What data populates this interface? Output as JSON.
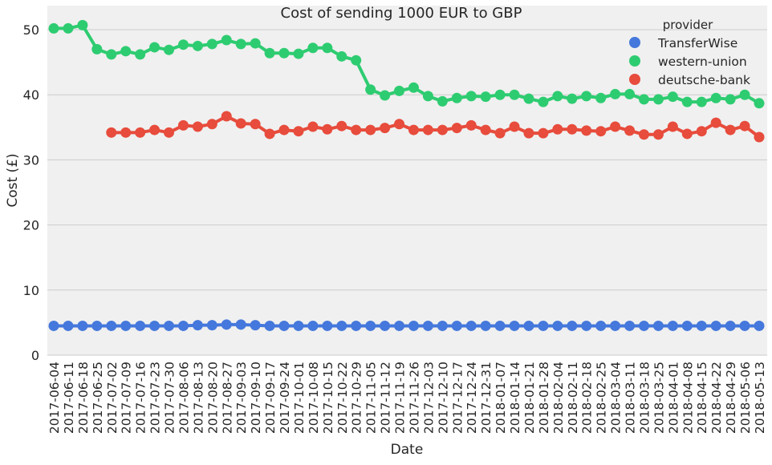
{
  "chart_data": {
    "type": "line",
    "title": "Cost of sending 1000 EUR to GBP",
    "xlabel": "Date",
    "ylabel": "Cost (£)",
    "ylim": [
      0,
      53.7
    ],
    "yticks": [
      0,
      10,
      20,
      30,
      40,
      50
    ],
    "grid": true,
    "legend": {
      "title": "provider",
      "placement": "top-right"
    },
    "categories": [
      "2017-06-04",
      "2017-06-11",
      "2017-06-18",
      "2017-06-25",
      "2017-07-02",
      "2017-07-09",
      "2017-07-16",
      "2017-07-23",
      "2017-07-30",
      "2017-08-06",
      "2017-08-13",
      "2017-08-20",
      "2017-08-27",
      "2017-09-03",
      "2017-09-10",
      "2017-09-17",
      "2017-09-24",
      "2017-10-01",
      "2017-10-08",
      "2017-10-15",
      "2017-10-22",
      "2017-10-29",
      "2017-11-05",
      "2017-11-12",
      "2017-11-19",
      "2017-11-26",
      "2017-12-03",
      "2017-12-10",
      "2017-12-17",
      "2017-12-24",
      "2017-12-31",
      "2018-01-07",
      "2018-01-14",
      "2018-01-21",
      "2018-01-28",
      "2018-02-04",
      "2018-02-11",
      "2018-02-18",
      "2018-02-25",
      "2018-03-04",
      "2018-03-11",
      "2018-03-18",
      "2018-03-25",
      "2018-04-01",
      "2018-04-08",
      "2018-04-15",
      "2018-04-22",
      "2018-04-29",
      "2018-05-06",
      "2018-05-13"
    ],
    "series": [
      {
        "name": "TransferWise",
        "color": "#4578dc",
        "values": [
          4.5,
          4.5,
          4.5,
          4.5,
          4.5,
          4.5,
          4.5,
          4.5,
          4.5,
          4.5,
          4.6,
          4.6,
          4.7,
          4.7,
          4.6,
          4.5,
          4.5,
          4.5,
          4.5,
          4.5,
          4.5,
          4.5,
          4.5,
          4.5,
          4.5,
          4.5,
          4.5,
          4.5,
          4.5,
          4.5,
          4.5,
          4.5,
          4.5,
          4.5,
          4.5,
          4.5,
          4.5,
          4.5,
          4.5,
          4.5,
          4.5,
          4.5,
          4.5,
          4.5,
          4.5,
          4.5,
          4.5,
          4.5,
          4.5,
          4.5
        ]
      },
      {
        "name": "western-union",
        "color": "#2ecc71",
        "values": [
          50.2,
          50.2,
          50.7,
          47.0,
          46.2,
          46.7,
          46.2,
          47.3,
          46.9,
          47.7,
          47.5,
          47.8,
          48.4,
          47.8,
          47.9,
          46.4,
          46.4,
          46.3,
          47.2,
          47.2,
          45.9,
          45.3,
          40.8,
          39.9,
          40.6,
          41.1,
          39.8,
          39.0,
          39.5,
          39.8,
          39.7,
          40.0,
          40.0,
          39.4,
          38.9,
          39.8,
          39.4,
          39.8,
          39.5,
          40.1,
          40.1,
          39.3,
          39.3,
          39.7,
          38.9,
          38.9,
          39.5,
          39.3,
          40.0,
          38.7
        ]
      },
      {
        "name": "deutsche-bank",
        "color": "#e74c3c",
        "values": [
          null,
          null,
          null,
          null,
          34.2,
          34.2,
          34.2,
          34.6,
          34.2,
          35.3,
          35.1,
          35.5,
          36.7,
          35.6,
          35.5,
          34.0,
          34.6,
          34.4,
          35.1,
          34.7,
          35.2,
          34.6,
          34.6,
          34.9,
          35.5,
          34.6,
          34.6,
          34.6,
          34.9,
          35.3,
          34.6,
          34.1,
          35.1,
          34.1,
          34.1,
          34.7,
          34.7,
          34.5,
          34.4,
          35.1,
          34.5,
          33.9,
          33.9,
          35.1,
          34.0,
          34.4,
          35.7,
          34.6,
          35.2,
          33.5
        ]
      }
    ]
  }
}
